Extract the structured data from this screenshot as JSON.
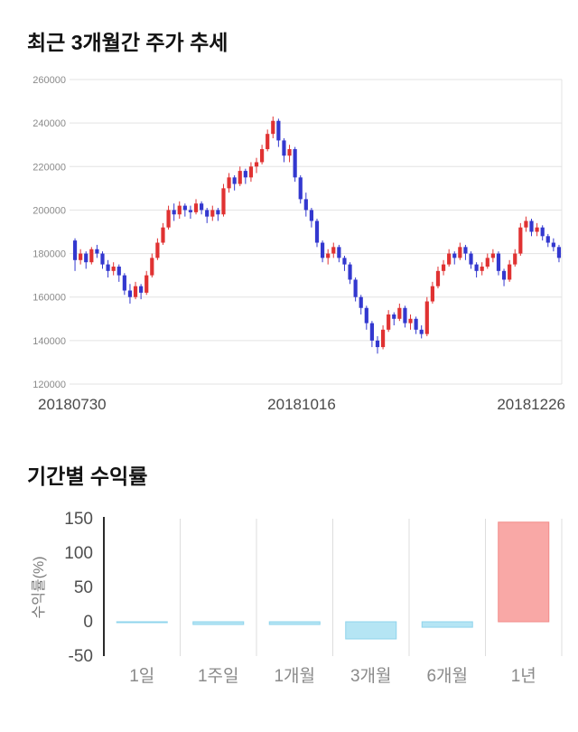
{
  "price_section": {
    "title": "최근 3개월간 주가 추세"
  },
  "returns_section": {
    "title": "기간별 수익률"
  },
  "chart_data": [
    {
      "type": "candlestick",
      "title": "최근 3개월간 주가 추세",
      "x_labels": [
        "20180730",
        "20181016",
        "20181226"
      ],
      "ylim": [
        120000,
        260000
      ],
      "yticks": [
        120000,
        140000,
        160000,
        180000,
        200000,
        220000,
        240000,
        260000
      ],
      "grid": true,
      "up_color": "#e03232",
      "down_color": "#3338cf",
      "candles": [
        [
          186000,
          187000,
          172000,
          177000
        ],
        [
          177000,
          182000,
          175000,
          180000
        ],
        [
          180000,
          181000,
          173000,
          176000
        ],
        [
          176000,
          183000,
          175000,
          182000
        ],
        [
          182000,
          184000,
          178000,
          180000
        ],
        [
          180000,
          181000,
          173000,
          175000
        ],
        [
          175000,
          177000,
          169000,
          172000
        ],
        [
          172000,
          176000,
          170000,
          174000
        ],
        [
          174000,
          175000,
          167000,
          170000
        ],
        [
          170000,
          171000,
          161000,
          163000
        ],
        [
          163000,
          166000,
          157000,
          160000
        ],
        [
          160000,
          167000,
          159000,
          165000
        ],
        [
          165000,
          166000,
          159000,
          162000
        ],
        [
          162000,
          172000,
          161000,
          170000
        ],
        [
          170000,
          180000,
          169000,
          178000
        ],
        [
          178000,
          187000,
          177000,
          185000
        ],
        [
          185000,
          194000,
          184000,
          192000
        ],
        [
          192000,
          202000,
          191000,
          200000
        ],
        [
          200000,
          203000,
          195000,
          198000
        ],
        [
          198000,
          204000,
          196000,
          202000
        ],
        [
          202000,
          203000,
          197000,
          200000
        ],
        [
          200000,
          202000,
          196000,
          199000
        ],
        [
          199000,
          205000,
          198000,
          203000
        ],
        [
          203000,
          204000,
          198000,
          200000
        ],
        [
          200000,
          201000,
          194000,
          197000
        ],
        [
          197000,
          202000,
          195000,
          200000
        ],
        [
          200000,
          201000,
          195000,
          198000
        ],
        [
          198000,
          212000,
          197000,
          210000
        ],
        [
          210000,
          217000,
          208000,
          215000
        ],
        [
          215000,
          216000,
          209000,
          212000
        ],
        [
          212000,
          220000,
          211000,
          218000
        ],
        [
          218000,
          219000,
          212000,
          215000
        ],
        [
          215000,
          222000,
          213000,
          220000
        ],
        [
          220000,
          224000,
          217000,
          222000
        ],
        [
          222000,
          230000,
          221000,
          228000
        ],
        [
          228000,
          237000,
          227000,
          235000
        ],
        [
          235000,
          243000,
          233000,
          241000
        ],
        [
          241000,
          242000,
          229000,
          232000
        ],
        [
          232000,
          233000,
          222000,
          225000
        ],
        [
          225000,
          230000,
          222000,
          228000
        ],
        [
          228000,
          229000,
          213000,
          215000
        ],
        [
          215000,
          216000,
          203000,
          205000
        ],
        [
          205000,
          208000,
          197000,
          200000
        ],
        [
          200000,
          201000,
          192000,
          195000
        ],
        [
          195000,
          196000,
          183000,
          185000
        ],
        [
          185000,
          186000,
          176000,
          178000
        ],
        [
          178000,
          182000,
          175000,
          180000
        ],
        [
          180000,
          185000,
          178000,
          183000
        ],
        [
          183000,
          184000,
          176000,
          178000
        ],
        [
          178000,
          179000,
          172000,
          175000
        ],
        [
          175000,
          176000,
          166000,
          168000
        ],
        [
          168000,
          169000,
          158000,
          160000
        ],
        [
          160000,
          161000,
          152000,
          155000
        ],
        [
          155000,
          156000,
          145000,
          148000
        ],
        [
          148000,
          149000,
          137000,
          140000
        ],
        [
          140000,
          142000,
          134000,
          137000
        ],
        [
          137000,
          147000,
          136000,
          145000
        ],
        [
          145000,
          154000,
          144000,
          152000
        ],
        [
          152000,
          153000,
          147000,
          150000
        ],
        [
          150000,
          157000,
          149000,
          155000
        ],
        [
          155000,
          156000,
          146000,
          148000
        ],
        [
          148000,
          152000,
          145000,
          150000
        ],
        [
          150000,
          151000,
          143000,
          145000
        ],
        [
          145000,
          147000,
          141000,
          143000
        ],
        [
          143000,
          160000,
          142000,
          158000
        ],
        [
          158000,
          167000,
          157000,
          165000
        ],
        [
          165000,
          174000,
          164000,
          172000
        ],
        [
          172000,
          177000,
          170000,
          175000
        ],
        [
          175000,
          182000,
          174000,
          180000
        ],
        [
          180000,
          181000,
          175000,
          178000
        ],
        [
          178000,
          185000,
          177000,
          183000
        ],
        [
          183000,
          184000,
          177000,
          180000
        ],
        [
          180000,
          181000,
          173000,
          175000
        ],
        [
          175000,
          176000,
          169000,
          172000
        ],
        [
          172000,
          176000,
          170000,
          174000
        ],
        [
          174000,
          180000,
          173000,
          178000
        ],
        [
          178000,
          182000,
          176000,
          180000
        ],
        [
          180000,
          181000,
          170000,
          172000
        ],
        [
          172000,
          173000,
          165000,
          168000
        ],
        [
          168000,
          177000,
          167000,
          175000
        ],
        [
          175000,
          182000,
          174000,
          180000
        ],
        [
          180000,
          194000,
          179000,
          192000
        ],
        [
          192000,
          197000,
          190000,
          195000
        ],
        [
          195000,
          196000,
          188000,
          190000
        ],
        [
          190000,
          194000,
          188000,
          192000
        ],
        [
          192000,
          193000,
          186000,
          188000
        ],
        [
          188000,
          189000,
          183000,
          185000
        ],
        [
          185000,
          187000,
          181000,
          183000
        ],
        [
          183000,
          184000,
          176000,
          178000
        ]
      ]
    },
    {
      "type": "bar",
      "title": "기간별 수익률",
      "ylabel": "수익률(%)",
      "categories": [
        "1일",
        "1주일",
        "1개월",
        "3개월",
        "6개월",
        "1년"
      ],
      "values": [
        -1,
        -4,
        -4,
        -25,
        -8,
        145
      ],
      "ylim": [
        -50,
        150
      ],
      "yticks": [
        150,
        100,
        50,
        0,
        -50
      ],
      "grid": true,
      "legend": "none",
      "positive_color": "#f9a8a6",
      "positive_border": "#f28b88",
      "negative_color": "#b5e5f4",
      "negative_border": "#8fd4ec"
    }
  ]
}
